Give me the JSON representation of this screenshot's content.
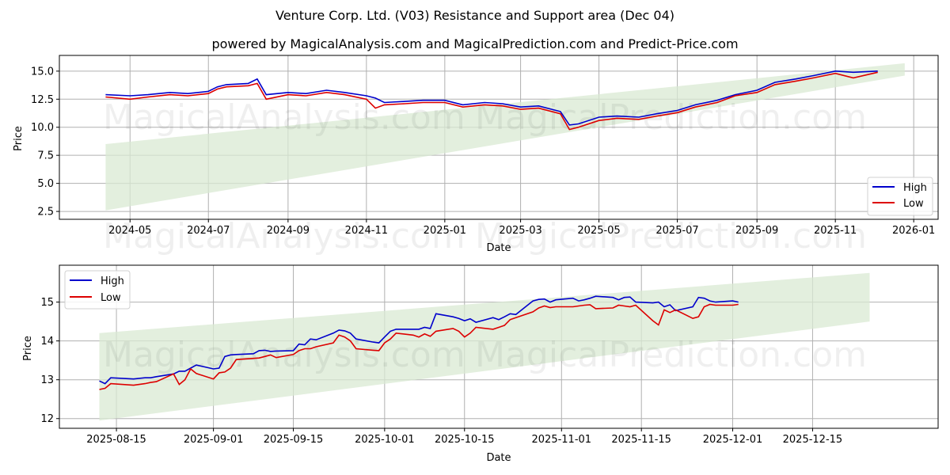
{
  "header": {
    "title": "Venture Corp. Ltd. (V03) Resistance and Support area (Dec 04)",
    "subtitle": "powered by MagicalAnalysis.com and MagicalPrediction.com and Predict-Price.com"
  },
  "watermarks": [
    "MagicalAnalysis.com",
    "MagicalPrediction.com"
  ],
  "colors": {
    "high": "#0000cc",
    "low": "#dd0000",
    "band": "#d9ead3",
    "grid": "#b0b0b0"
  },
  "chart_data": [
    {
      "type": "line",
      "title": "",
      "xlabel": "Date",
      "ylabel": "Price",
      "ylim": [
        1.8,
        16.4
      ],
      "grid": true,
      "legend": {
        "position": "lower right",
        "entries": [
          "High",
          "Low"
        ]
      },
      "x_ticks": [
        "2024-05",
        "2024-07",
        "2024-09",
        "2024-11",
        "2025-01",
        "2025-03",
        "2025-05",
        "2025-07",
        "2025-09",
        "2025-11",
        "2026-01"
      ],
      "y_ticks": [
        "2.5",
        "5.0",
        "7.5",
        "10.0",
        "12.5",
        "15.0"
      ],
      "x": [
        "2024-04-12",
        "2024-05-01",
        "2024-05-15",
        "2024-06-01",
        "2024-06-15",
        "2024-07-01",
        "2024-07-08",
        "2024-07-15",
        "2024-08-01",
        "2024-08-08",
        "2024-08-15",
        "2024-09-01",
        "2024-09-15",
        "2024-10-01",
        "2024-10-15",
        "2024-11-01",
        "2024-11-08",
        "2024-11-15",
        "2024-12-01",
        "2024-12-15",
        "2025-01-01",
        "2025-01-15",
        "2025-02-01",
        "2025-02-15",
        "2025-03-01",
        "2025-03-15",
        "2025-04-01",
        "2025-04-08",
        "2025-04-15",
        "2025-05-01",
        "2025-05-15",
        "2025-06-01",
        "2025-06-15",
        "2025-07-01",
        "2025-07-15",
        "2025-08-01",
        "2025-08-15",
        "2025-09-01",
        "2025-09-15",
        "2025-10-01",
        "2025-10-15",
        "2025-11-01",
        "2025-11-15",
        "2025-12-04"
      ],
      "series": [
        {
          "name": "High",
          "color": "#0000cc",
          "values": [
            12.9,
            12.8,
            12.9,
            13.1,
            13.0,
            13.2,
            13.6,
            13.8,
            13.9,
            14.3,
            12.9,
            13.1,
            13.0,
            13.3,
            13.1,
            12.8,
            12.6,
            12.2,
            12.3,
            12.4,
            12.4,
            12.0,
            12.2,
            12.1,
            11.8,
            11.9,
            11.4,
            10.2,
            10.3,
            10.9,
            11.0,
            10.9,
            11.2,
            11.5,
            12.0,
            12.4,
            12.9,
            13.3,
            14.0,
            14.3,
            14.6,
            15.0,
            14.9,
            15.0
          ]
        },
        {
          "name": "Low",
          "color": "#dd0000",
          "values": [
            12.7,
            12.5,
            12.7,
            12.9,
            12.8,
            13.0,
            13.4,
            13.6,
            13.7,
            13.9,
            12.5,
            12.9,
            12.8,
            13.1,
            12.9,
            12.5,
            11.7,
            12.0,
            12.1,
            12.2,
            12.2,
            11.8,
            12.0,
            11.9,
            11.6,
            11.7,
            11.2,
            9.8,
            10.0,
            10.6,
            10.8,
            10.7,
            11.0,
            11.3,
            11.8,
            12.2,
            12.8,
            13.1,
            13.8,
            14.1,
            14.4,
            14.8,
            14.4,
            14.9
          ]
        },
        {
          "name": "Resistance band upper",
          "x": [
            "2024-04-12",
            "2025-12-25"
          ],
          "values": [
            8.5,
            15.7
          ]
        },
        {
          "name": "Support band lower",
          "x": [
            "2024-04-12",
            "2025-12-25"
          ],
          "values": [
            2.6,
            14.6
          ]
        }
      ]
    },
    {
      "type": "line",
      "title": "",
      "xlabel": "Date",
      "ylabel": "Price",
      "ylim": [
        11.75,
        15.95
      ],
      "grid": true,
      "legend": {
        "position": "upper left",
        "entries": [
          "High",
          "Low"
        ]
      },
      "x_ticks": [
        "2025-08-15",
        "2025-09-01",
        "2025-09-15",
        "2025-10-01",
        "2025-10-15",
        "2025-11-01",
        "2025-11-15",
        "2025-12-01",
        "2025-12-15"
      ],
      "y_ticks": [
        "12",
        "13",
        "14",
        "15"
      ],
      "x": [
        "2025-08-12",
        "2025-08-13",
        "2025-08-14",
        "2025-08-18",
        "2025-08-20",
        "2025-08-21",
        "2025-08-22",
        "2025-08-25",
        "2025-08-26",
        "2025-08-27",
        "2025-08-28",
        "2025-08-29",
        "2025-09-01",
        "2025-09-02",
        "2025-09-03",
        "2025-09-04",
        "2025-09-05",
        "2025-09-08",
        "2025-09-09",
        "2025-09-10",
        "2025-09-11",
        "2025-09-12",
        "2025-09-15",
        "2025-09-16",
        "2025-09-17",
        "2025-09-18",
        "2025-09-19",
        "2025-09-22",
        "2025-09-23",
        "2025-09-24",
        "2025-09-25",
        "2025-09-26",
        "2025-09-29",
        "2025-09-30",
        "2025-10-01",
        "2025-10-02",
        "2025-10-03",
        "2025-10-06",
        "2025-10-07",
        "2025-10-08",
        "2025-10-09",
        "2025-10-10",
        "2025-10-13",
        "2025-10-14",
        "2025-10-15",
        "2025-10-16",
        "2025-10-17",
        "2025-10-20",
        "2025-10-21",
        "2025-10-22",
        "2025-10-23",
        "2025-10-24",
        "2025-10-27",
        "2025-10-28",
        "2025-10-29",
        "2025-10-30",
        "2025-10-31",
        "2025-11-03",
        "2025-11-04",
        "2025-11-05",
        "2025-11-06",
        "2025-11-07",
        "2025-11-10",
        "2025-11-11",
        "2025-11-12",
        "2025-11-13",
        "2025-11-14",
        "2025-11-17",
        "2025-11-18",
        "2025-11-19",
        "2025-11-20",
        "2025-11-21",
        "2025-11-24",
        "2025-11-25",
        "2025-11-26",
        "2025-11-27",
        "2025-11-28",
        "2025-12-01",
        "2025-12-02"
      ],
      "series": [
        {
          "name": "High",
          "color": "#0000cc",
          "values": [
            12.97,
            12.9,
            13.05,
            13.02,
            13.05,
            13.05,
            13.08,
            13.15,
            13.22,
            13.22,
            13.3,
            13.38,
            13.28,
            13.3,
            13.6,
            13.64,
            13.65,
            13.67,
            13.75,
            13.76,
            13.73,
            13.74,
            13.75,
            13.92,
            13.9,
            14.05,
            14.03,
            14.2,
            14.28,
            14.26,
            14.2,
            14.05,
            13.97,
            13.95,
            14.1,
            14.25,
            14.3,
            14.3,
            14.3,
            14.35,
            14.32,
            14.7,
            14.62,
            14.58,
            14.52,
            14.57,
            14.48,
            14.6,
            14.55,
            14.62,
            14.7,
            14.68,
            15.03,
            15.07,
            15.08,
            15.0,
            15.06,
            15.1,
            15.03,
            15.06,
            15.1,
            15.15,
            15.12,
            15.06,
            15.12,
            15.13,
            15.0,
            14.98,
            15.0,
            14.88,
            14.93,
            14.78,
            14.88,
            15.12,
            15.1,
            15.03,
            15.0,
            15.03,
            15.0
          ]
        },
        {
          "name": "Low",
          "color": "#dd0000",
          "values": [
            12.75,
            12.78,
            12.9,
            12.86,
            12.9,
            12.93,
            12.95,
            13.15,
            12.88,
            13.0,
            13.28,
            13.16,
            13.02,
            13.18,
            13.2,
            13.3,
            13.52,
            13.55,
            13.56,
            13.6,
            13.64,
            13.57,
            13.65,
            13.75,
            13.8,
            13.8,
            13.85,
            13.95,
            14.15,
            14.1,
            14.0,
            13.8,
            13.76,
            13.75,
            13.95,
            14.05,
            14.2,
            14.15,
            14.1,
            14.18,
            14.12,
            14.25,
            14.32,
            14.25,
            14.1,
            14.2,
            14.35,
            14.3,
            14.35,
            14.4,
            14.55,
            14.6,
            14.75,
            14.85,
            14.9,
            14.86,
            14.88,
            14.88,
            14.9,
            14.92,
            14.93,
            14.83,
            14.85,
            14.92,
            14.9,
            14.88,
            14.92,
            14.52,
            14.41,
            14.8,
            14.73,
            14.8,
            14.58,
            14.62,
            14.88,
            14.94,
            14.92,
            14.92,
            14.94
          ]
        },
        {
          "name": "Resistance band upper",
          "x": [
            "2025-08-12",
            "2025-12-25"
          ],
          "values": [
            14.2,
            15.75
          ]
        },
        {
          "name": "Support band lower",
          "x": [
            "2025-08-12",
            "2025-12-25"
          ],
          "values": [
            11.95,
            14.5
          ]
        }
      ]
    }
  ]
}
